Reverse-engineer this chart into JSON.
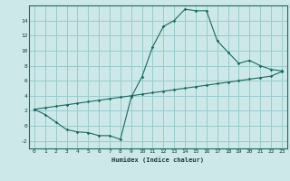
{
  "title": "",
  "xlabel": "Humidex (Indice chaleur)",
  "bg_color": "#cce8e8",
  "grid_color": "#99cccc",
  "line_color": "#1a6b5e",
  "line1_x": [
    0,
    1,
    2,
    3,
    4,
    5,
    6,
    7,
    8,
    9,
    10,
    11,
    12,
    13,
    14,
    15,
    16,
    17,
    18,
    19,
    20,
    21,
    22,
    23
  ],
  "line1_y": [
    2.2,
    1.5,
    0.5,
    -0.5,
    -0.8,
    -0.9,
    -1.3,
    -1.3,
    -1.8,
    3.8,
    6.5,
    10.5,
    13.2,
    14.0,
    15.5,
    15.3,
    15.3,
    11.3,
    9.8,
    8.3,
    8.7,
    8.0,
    7.5,
    7.3
  ],
  "line2_x": [
    0,
    1,
    2,
    3,
    4,
    5,
    6,
    7,
    8,
    9,
    10,
    11,
    12,
    13,
    14,
    15,
    16,
    17,
    18,
    19,
    20,
    21,
    22,
    23
  ],
  "line2_y": [
    2.2,
    2.4,
    2.6,
    2.8,
    3.0,
    3.2,
    3.4,
    3.6,
    3.8,
    4.0,
    4.2,
    4.4,
    4.6,
    4.8,
    5.0,
    5.2,
    5.4,
    5.6,
    5.8,
    6.0,
    6.2,
    6.4,
    6.6,
    7.2
  ],
  "ylim": [
    -3,
    16
  ],
  "xlim": [
    -0.5,
    23.5
  ],
  "yticks": [
    -2,
    0,
    2,
    4,
    6,
    8,
    10,
    12,
    14
  ],
  "xticks": [
    0,
    1,
    2,
    3,
    4,
    5,
    6,
    7,
    8,
    9,
    10,
    11,
    12,
    13,
    14,
    15,
    16,
    17,
    18,
    19,
    20,
    21,
    22,
    23
  ]
}
